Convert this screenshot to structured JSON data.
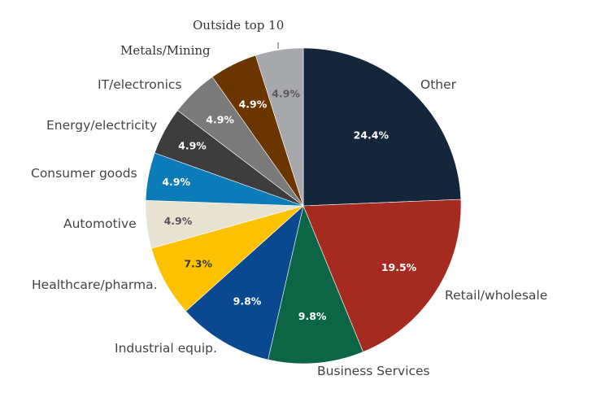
{
  "chart_data": {
    "type": "pie",
    "title": "",
    "slices": [
      {
        "label": "Other",
        "value": 24.4,
        "value_label": "24.4%",
        "color": "#16263a",
        "value_color": "#ffffff"
      },
      {
        "label": "Retail/wholesale",
        "value": 19.5,
        "value_label": "19.5%",
        "color": "#a52a20",
        "value_color": "#ffffff"
      },
      {
        "label": "Business Services",
        "value": 9.8,
        "value_label": "9.8%",
        "color": "#0c6645",
        "value_color": "#ffffff"
      },
      {
        "label": "Industrial equip.",
        "value": 9.8,
        "value_label": "9.8%",
        "color": "#0a4890",
        "value_color": "#ffffff"
      },
      {
        "label": "Healthcare/pharma.",
        "value": 7.3,
        "value_label": "7.3%",
        "color": "#fcc200",
        "value_color": "#3a3a3a"
      },
      {
        "label": "Automotive",
        "value": 4.9,
        "value_label": "4.9%",
        "color": "#e8e2d2",
        "value_color": "#555555"
      },
      {
        "label": "Consumer goods",
        "value": 4.9,
        "value_label": "4.9%",
        "color": "#0b7cb8",
        "value_color": "#ffffff"
      },
      {
        "label": "Energy/electricity",
        "value": 4.9,
        "value_label": "4.9%",
        "color": "#3d3d3d",
        "value_color": "#ffffff"
      },
      {
        "label": "IT/electronics",
        "value": 4.9,
        "value_label": "4.9%",
        "color": "#7a7a7a",
        "value_color": "#ffffff"
      },
      {
        "label": "Metals/Mining",
        "value": 4.9,
        "value_label": "4.9%",
        "color": "#6b3500",
        "value_color": "#ffffff"
      },
      {
        "label": "Outside top 10",
        "value": 4.9,
        "value_label": "4.9%",
        "color": "#a7a8ab",
        "value_color": "#5a5a5a"
      }
    ]
  }
}
